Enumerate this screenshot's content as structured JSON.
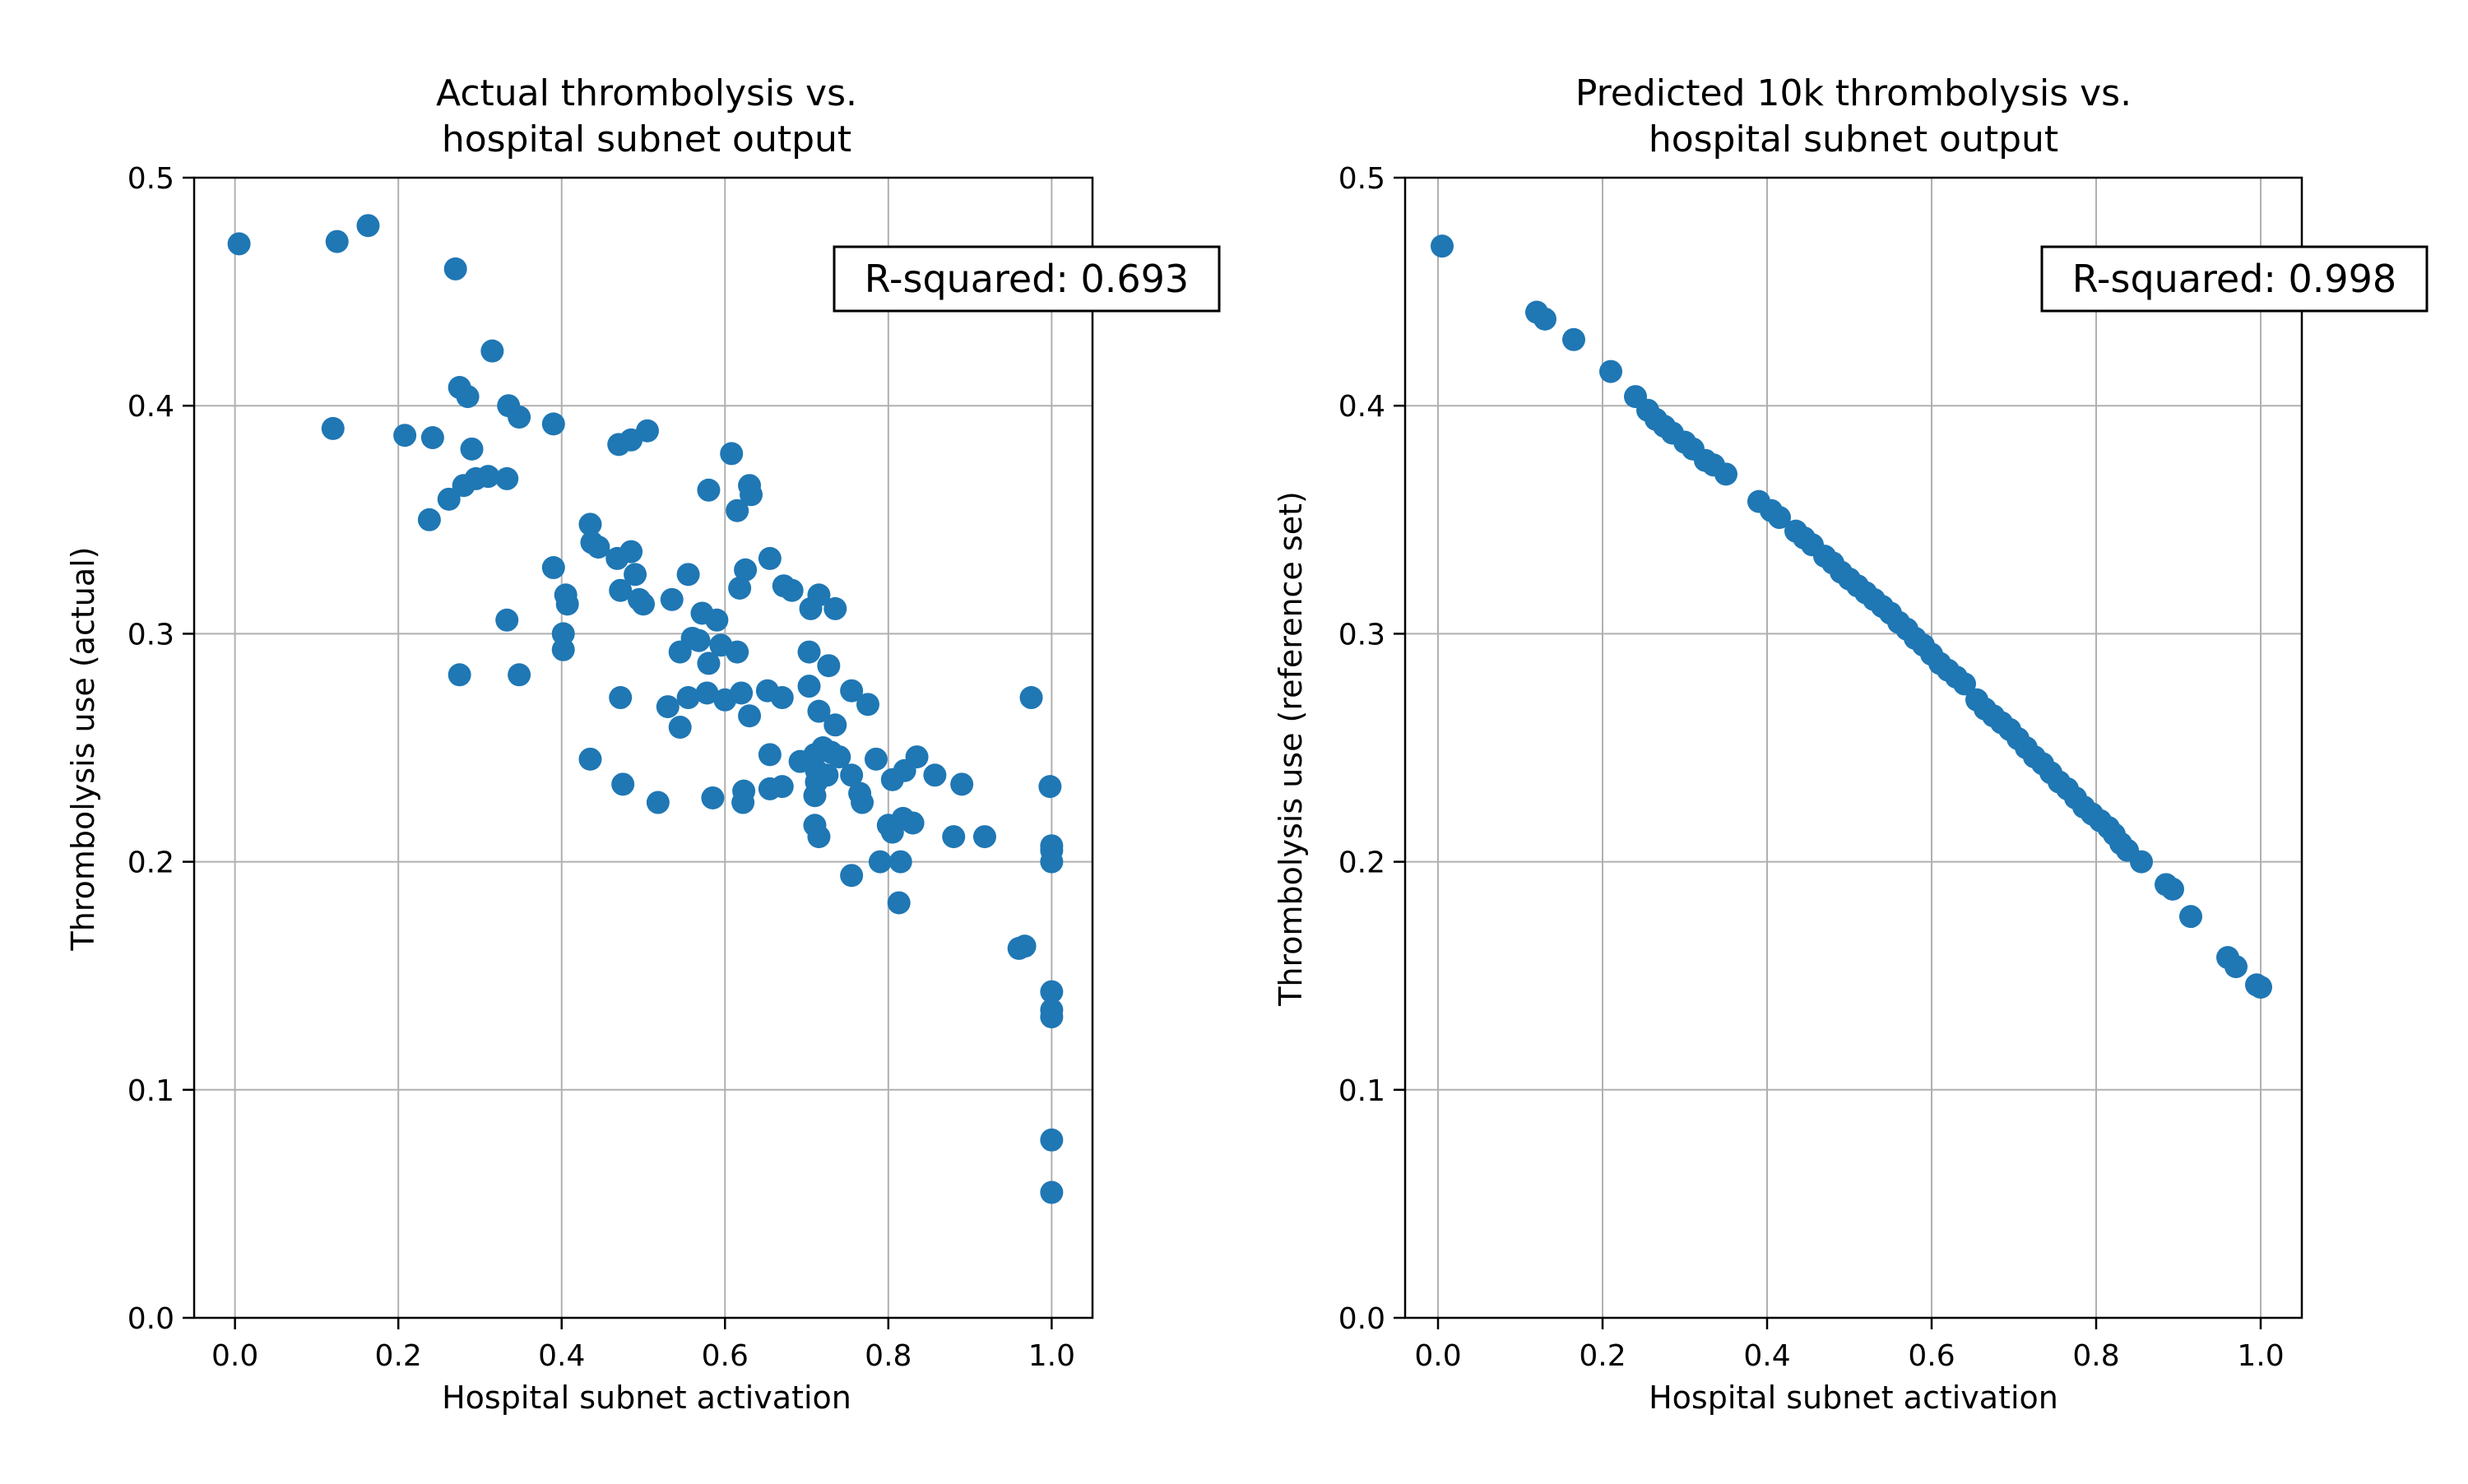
{
  "chart_data": [
    {
      "type": "scatter",
      "title_line1": "Actual thrombolysis vs.",
      "title_line2": "hospital subnet output",
      "xlabel": "Hospital subnet activation",
      "ylabel": "Thrombolysis use (actual)",
      "annotation": "R-squared: 0.693",
      "xlim": [
        -0.05,
        1.05
      ],
      "ylim": [
        0,
        0.5
      ],
      "xticks": [
        0.0,
        0.2,
        0.4,
        0.6,
        0.8,
        1.0
      ],
      "xtick_labels": [
        "0.0",
        "0.2",
        "0.4",
        "0.6",
        "0.8",
        "1.0"
      ],
      "yticks": [
        0.0,
        0.1,
        0.2,
        0.3,
        0.4,
        0.5
      ],
      "ytick_labels": [
        "0.0",
        "0.1",
        "0.2",
        "0.3",
        "0.4",
        "0.5"
      ],
      "grid": true,
      "color": "#1f77b4",
      "points": [
        [
          0.005,
          0.471
        ],
        [
          0.125,
          0.472
        ],
        [
          0.163,
          0.479
        ],
        [
          0.12,
          0.39
        ],
        [
          0.27,
          0.46
        ],
        [
          0.315,
          0.424
        ],
        [
          0.275,
          0.408
        ],
        [
          0.285,
          0.404
        ],
        [
          0.335,
          0.4
        ],
        [
          0.348,
          0.395
        ],
        [
          0.208,
          0.387
        ],
        [
          0.242,
          0.386
        ],
        [
          0.39,
          0.392
        ],
        [
          0.47,
          0.383
        ],
        [
          0.485,
          0.385
        ],
        [
          0.505,
          0.389
        ],
        [
          0.29,
          0.381
        ],
        [
          0.295,
          0.368
        ],
        [
          0.31,
          0.369
        ],
        [
          0.28,
          0.365
        ],
        [
          0.262,
          0.359
        ],
        [
          0.333,
          0.368
        ],
        [
          0.238,
          0.35
        ],
        [
          0.608,
          0.379
        ],
        [
          0.63,
          0.365
        ],
        [
          0.632,
          0.361
        ],
        [
          0.58,
          0.363
        ],
        [
          0.615,
          0.354
        ],
        [
          0.435,
          0.348
        ],
        [
          0.437,
          0.34
        ],
        [
          0.445,
          0.338
        ],
        [
          0.468,
          0.333
        ],
        [
          0.485,
          0.336
        ],
        [
          0.39,
          0.329
        ],
        [
          0.49,
          0.326
        ],
        [
          0.555,
          0.326
        ],
        [
          0.625,
          0.328
        ],
        [
          0.618,
          0.32
        ],
        [
          0.655,
          0.333
        ],
        [
          0.672,
          0.321
        ],
        [
          0.682,
          0.319
        ],
        [
          0.405,
          0.317
        ],
        [
          0.407,
          0.313
        ],
        [
          0.472,
          0.319
        ],
        [
          0.495,
          0.315
        ],
        [
          0.5,
          0.313
        ],
        [
          0.535,
          0.315
        ],
        [
          0.715,
          0.317
        ],
        [
          0.705,
          0.311
        ],
        [
          0.735,
          0.311
        ],
        [
          0.333,
          0.306
        ],
        [
          0.572,
          0.309
        ],
        [
          0.59,
          0.306
        ],
        [
          0.402,
          0.3
        ],
        [
          0.402,
          0.293
        ],
        [
          0.56,
          0.298
        ],
        [
          0.568,
          0.297
        ],
        [
          0.545,
          0.292
        ],
        [
          0.595,
          0.295
        ],
        [
          0.615,
          0.292
        ],
        [
          0.58,
          0.287
        ],
        [
          0.703,
          0.292
        ],
        [
          0.727,
          0.286
        ],
        [
          0.275,
          0.282
        ],
        [
          0.348,
          0.282
        ],
        [
          0.472,
          0.272
        ],
        [
          0.53,
          0.268
        ],
        [
          0.555,
          0.272
        ],
        [
          0.578,
          0.274
        ],
        [
          0.6,
          0.271
        ],
        [
          0.62,
          0.274
        ],
        [
          0.652,
          0.275
        ],
        [
          0.67,
          0.272
        ],
        [
          0.703,
          0.277
        ],
        [
          0.755,
          0.275
        ],
        [
          0.775,
          0.269
        ],
        [
          0.63,
          0.264
        ],
        [
          0.545,
          0.259
        ],
        [
          0.735,
          0.26
        ],
        [
          0.715,
          0.266
        ],
        [
          0.435,
          0.245
        ],
        [
          0.655,
          0.247
        ],
        [
          0.692,
          0.244
        ],
        [
          0.71,
          0.247
        ],
        [
          0.72,
          0.25
        ],
        [
          0.73,
          0.248
        ],
        [
          0.74,
          0.246
        ],
        [
          0.712,
          0.24
        ],
        [
          0.725,
          0.238
        ],
        [
          0.755,
          0.238
        ],
        [
          0.785,
          0.245
        ],
        [
          0.805,
          0.236
        ],
        [
          0.82,
          0.24
        ],
        [
          0.835,
          0.246
        ],
        [
          0.857,
          0.238
        ],
        [
          0.475,
          0.234
        ],
        [
          0.518,
          0.226
        ],
        [
          0.585,
          0.228
        ],
        [
          0.623,
          0.231
        ],
        [
          0.622,
          0.226
        ],
        [
          0.655,
          0.232
        ],
        [
          0.67,
          0.233
        ],
        [
          0.712,
          0.235
        ],
        [
          0.71,
          0.229
        ],
        [
          0.765,
          0.23
        ],
        [
          0.768,
          0.226
        ],
        [
          0.89,
          0.234
        ],
        [
          0.71,
          0.216
        ],
        [
          0.715,
          0.211
        ],
        [
          0.8,
          0.216
        ],
        [
          0.805,
          0.213
        ],
        [
          0.818,
          0.219
        ],
        [
          0.83,
          0.217
        ],
        [
          0.88,
          0.211
        ],
        [
          0.918,
          0.211
        ],
        [
          0.755,
          0.194
        ],
        [
          0.79,
          0.2
        ],
        [
          0.815,
          0.2
        ],
        [
          0.813,
          0.182
        ],
        [
          0.975,
          0.272
        ],
        [
          0.998,
          0.233
        ],
        [
          1.0,
          0.207
        ],
        [
          1.0,
          0.205
        ],
        [
          1.0,
          0.2
        ],
        [
          0.96,
          0.162
        ],
        [
          0.967,
          0.163
        ],
        [
          1.0,
          0.143
        ],
        [
          1.0,
          0.135
        ],
        [
          1.0,
          0.132
        ],
        [
          1.0,
          0.078
        ],
        [
          1.0,
          0.055
        ]
      ]
    },
    {
      "type": "scatter",
      "title_line1": "Predicted 10k thrombolysis vs.",
      "title_line2": "hospital subnet output",
      "xlabel": "Hospital subnet activation",
      "ylabel": "Thrombolysis use (reference set)",
      "annotation": "R-squared: 0.998",
      "xlim": [
        -0.04,
        1.05
      ],
      "ylim": [
        0,
        0.5
      ],
      "xticks": [
        0.0,
        0.2,
        0.4,
        0.6,
        0.8,
        1.0
      ],
      "xtick_labels": [
        "0.0",
        "0.2",
        "0.4",
        "0.6",
        "0.8",
        "1.0"
      ],
      "yticks": [
        0.0,
        0.1,
        0.2,
        0.3,
        0.4,
        0.5
      ],
      "ytick_labels": [
        "0.0",
        "0.1",
        "0.2",
        "0.3",
        "0.4",
        "0.5"
      ],
      "grid": true,
      "color": "#1f77b4",
      "points": [
        [
          0.005,
          0.47
        ],
        [
          0.12,
          0.441
        ],
        [
          0.13,
          0.438
        ],
        [
          0.165,
          0.429
        ],
        [
          0.21,
          0.415
        ],
        [
          0.24,
          0.404
        ],
        [
          0.255,
          0.398
        ],
        [
          0.265,
          0.394
        ],
        [
          0.275,
          0.391
        ],
        [
          0.285,
          0.388
        ],
        [
          0.3,
          0.384
        ],
        [
          0.31,
          0.381
        ],
        [
          0.325,
          0.376
        ],
        [
          0.335,
          0.374
        ],
        [
          0.35,
          0.37
        ],
        [
          0.39,
          0.358
        ],
        [
          0.405,
          0.354
        ],
        [
          0.415,
          0.351
        ],
        [
          0.435,
          0.345
        ],
        [
          0.445,
          0.342
        ],
        [
          0.455,
          0.339
        ],
        [
          0.47,
          0.334
        ],
        [
          0.48,
          0.331
        ],
        [
          0.49,
          0.327
        ],
        [
          0.5,
          0.324
        ],
        [
          0.51,
          0.321
        ],
        [
          0.52,
          0.318
        ],
        [
          0.53,
          0.315
        ],
        [
          0.54,
          0.312
        ],
        [
          0.55,
          0.309
        ],
        [
          0.56,
          0.305
        ],
        [
          0.57,
          0.302
        ],
        [
          0.58,
          0.298
        ],
        [
          0.59,
          0.295
        ],
        [
          0.6,
          0.291
        ],
        [
          0.61,
          0.287
        ],
        [
          0.62,
          0.284
        ],
        [
          0.63,
          0.281
        ],
        [
          0.64,
          0.278
        ],
        [
          0.655,
          0.271
        ],
        [
          0.665,
          0.267
        ],
        [
          0.675,
          0.264
        ],
        [
          0.685,
          0.261
        ],
        [
          0.695,
          0.258
        ],
        [
          0.705,
          0.254
        ],
        [
          0.715,
          0.25
        ],
        [
          0.725,
          0.246
        ],
        [
          0.735,
          0.243
        ],
        [
          0.745,
          0.239
        ],
        [
          0.755,
          0.235
        ],
        [
          0.765,
          0.232
        ],
        [
          0.775,
          0.228
        ],
        [
          0.785,
          0.224
        ],
        [
          0.795,
          0.221
        ],
        [
          0.805,
          0.218
        ],
        [
          0.815,
          0.215
        ],
        [
          0.822,
          0.212
        ],
        [
          0.83,
          0.208
        ],
        [
          0.838,
          0.205
        ],
        [
          0.855,
          0.2
        ],
        [
          0.885,
          0.19
        ],
        [
          0.893,
          0.188
        ],
        [
          0.915,
          0.176
        ],
        [
          0.96,
          0.158
        ],
        [
          0.97,
          0.154
        ],
        [
          0.995,
          0.146
        ],
        [
          1.0,
          0.145
        ]
      ]
    }
  ]
}
